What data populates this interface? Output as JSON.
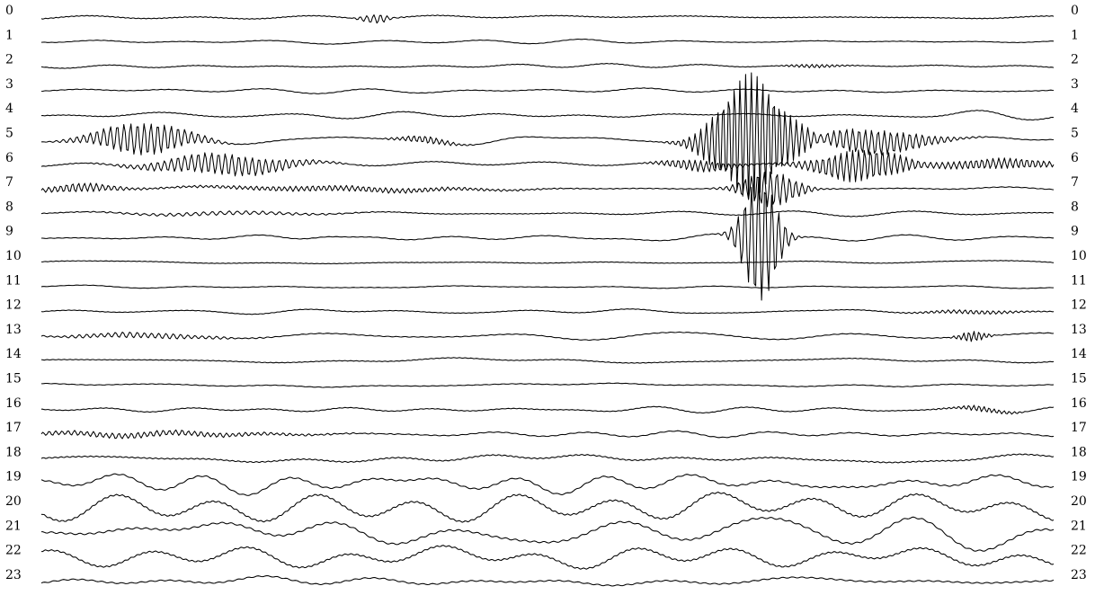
{
  "chart_data": {
    "type": "line",
    "title": "",
    "xlabel": "",
    "ylabel": "",
    "grid": false,
    "legend": "none",
    "line_color": "#000000",
    "channel_labels": [
      "0",
      "1",
      "2",
      "3",
      "4",
      "5",
      "6",
      "7",
      "8",
      "9",
      "10",
      "11",
      "12",
      "13",
      "14",
      "15",
      "16",
      "17",
      "18",
      "19",
      "20",
      "21",
      "22",
      "23"
    ],
    "series": [
      {
        "label": "0",
        "base": 0.6,
        "noise": 0.8,
        "bursts": [
          {
            "c": 0.33,
            "w": 0.015,
            "a": 5,
            "f": 150
          }
        ]
      },
      {
        "label": "1",
        "base": 0.3,
        "noise": 0.5,
        "bursts": [
          {
            "c": 0.3,
            "w": 0.06,
            "a": 3,
            "f": 6
          }
        ]
      },
      {
        "label": "2",
        "base": 0.4,
        "noise": 0.6,
        "bursts": [
          {
            "c": 0.76,
            "w": 0.03,
            "a": 2,
            "f": 200
          }
        ]
      },
      {
        "label": "3",
        "base": 0.4,
        "noise": 0.7,
        "bursts": []
      },
      {
        "label": "4",
        "base": 0.5,
        "noise": 0.9,
        "bursts": [
          {
            "c": 0.95,
            "w": 0.05,
            "a": 4,
            "f": 8
          }
        ]
      },
      {
        "label": "5",
        "base": 0.4,
        "noise": 1.0,
        "bursts": [
          {
            "c": 0.1,
            "w": 0.05,
            "a": 18,
            "f": 150
          },
          {
            "c": 0.38,
            "w": 0.03,
            "a": 4,
            "f": 180
          },
          {
            "c": 0.7,
            "w": 0.04,
            "a": 70,
            "f": 180
          },
          {
            "c": 0.82,
            "w": 0.06,
            "a": 14,
            "f": 160
          }
        ]
      },
      {
        "label": "6",
        "base": 0.5,
        "noise": 0.9,
        "bursts": [
          {
            "c": 0.18,
            "w": 0.07,
            "a": 12,
            "f": 150
          },
          {
            "c": 0.65,
            "w": 0.04,
            "a": 6,
            "f": 180
          },
          {
            "c": 0.81,
            "w": 0.05,
            "a": 18,
            "f": 170
          },
          {
            "c": 0.95,
            "w": 0.06,
            "a": 6,
            "f": 180
          }
        ]
      },
      {
        "label": "7",
        "base": 0.5,
        "noise": 0.8,
        "bursts": [
          {
            "c": 0.04,
            "w": 0.04,
            "a": 5,
            "f": 170
          },
          {
            "c": 0.3,
            "w": 0.15,
            "a": 3,
            "f": 180
          },
          {
            "c": 0.72,
            "w": 0.03,
            "a": 20,
            "f": 160
          }
        ]
      },
      {
        "label": "8",
        "base": 0.5,
        "noise": 1.0,
        "bursts": [
          {
            "c": 0.18,
            "w": 0.1,
            "a": 2,
            "f": 120
          }
        ]
      },
      {
        "label": "9",
        "base": 0.4,
        "noise": 1.0,
        "bursts": [
          {
            "c": 0.29,
            "w": 0.03,
            "a": 7,
            "f": 5
          },
          {
            "c": 0.71,
            "w": 0.02,
            "a": 70,
            "f": 150
          }
        ]
      },
      {
        "label": "10",
        "base": 0.4,
        "noise": 0.6,
        "bursts": []
      },
      {
        "label": "11",
        "base": 0.3,
        "noise": 0.4,
        "bursts": []
      },
      {
        "label": "12",
        "base": 0.4,
        "noise": 0.6,
        "bursts": [
          {
            "c": 0.92,
            "w": 0.05,
            "a": 2,
            "f": 180
          }
        ]
      },
      {
        "label": "13",
        "base": 0.5,
        "noise": 0.9,
        "bursts": [
          {
            "c": 0.1,
            "w": 0.08,
            "a": 3,
            "f": 140
          },
          {
            "c": 0.92,
            "w": 0.015,
            "a": 6,
            "f": 200
          }
        ]
      },
      {
        "label": "14",
        "base": 0.5,
        "noise": 0.8,
        "bursts": []
      },
      {
        "label": "15",
        "base": 0.4,
        "noise": 0.6,
        "bursts": []
      },
      {
        "label": "16",
        "base": 0.5,
        "noise": 1.0,
        "bursts": [
          {
            "c": 0.93,
            "w": 0.03,
            "a": 3,
            "f": 200
          }
        ]
      },
      {
        "label": "17",
        "base": 0.6,
        "noise": 1.0,
        "bursts": [
          {
            "c": 0.1,
            "w": 0.15,
            "a": 3,
            "f": 160
          }
        ]
      },
      {
        "label": "18",
        "base": 0.9,
        "noise": 2.5,
        "bursts": []
      },
      {
        "label": "19",
        "base": 1.1,
        "noise": 3.5,
        "bursts": []
      },
      {
        "label": "20",
        "base": 1.3,
        "noise": 4.5,
        "bursts": []
      },
      {
        "label": "21",
        "base": 1.4,
        "noise": 5.0,
        "bursts": []
      },
      {
        "label": "22",
        "base": 1.2,
        "noise": 4.0,
        "bursts": []
      },
      {
        "label": "23",
        "base": 1.0,
        "noise": 3.5,
        "bursts": []
      }
    ]
  }
}
